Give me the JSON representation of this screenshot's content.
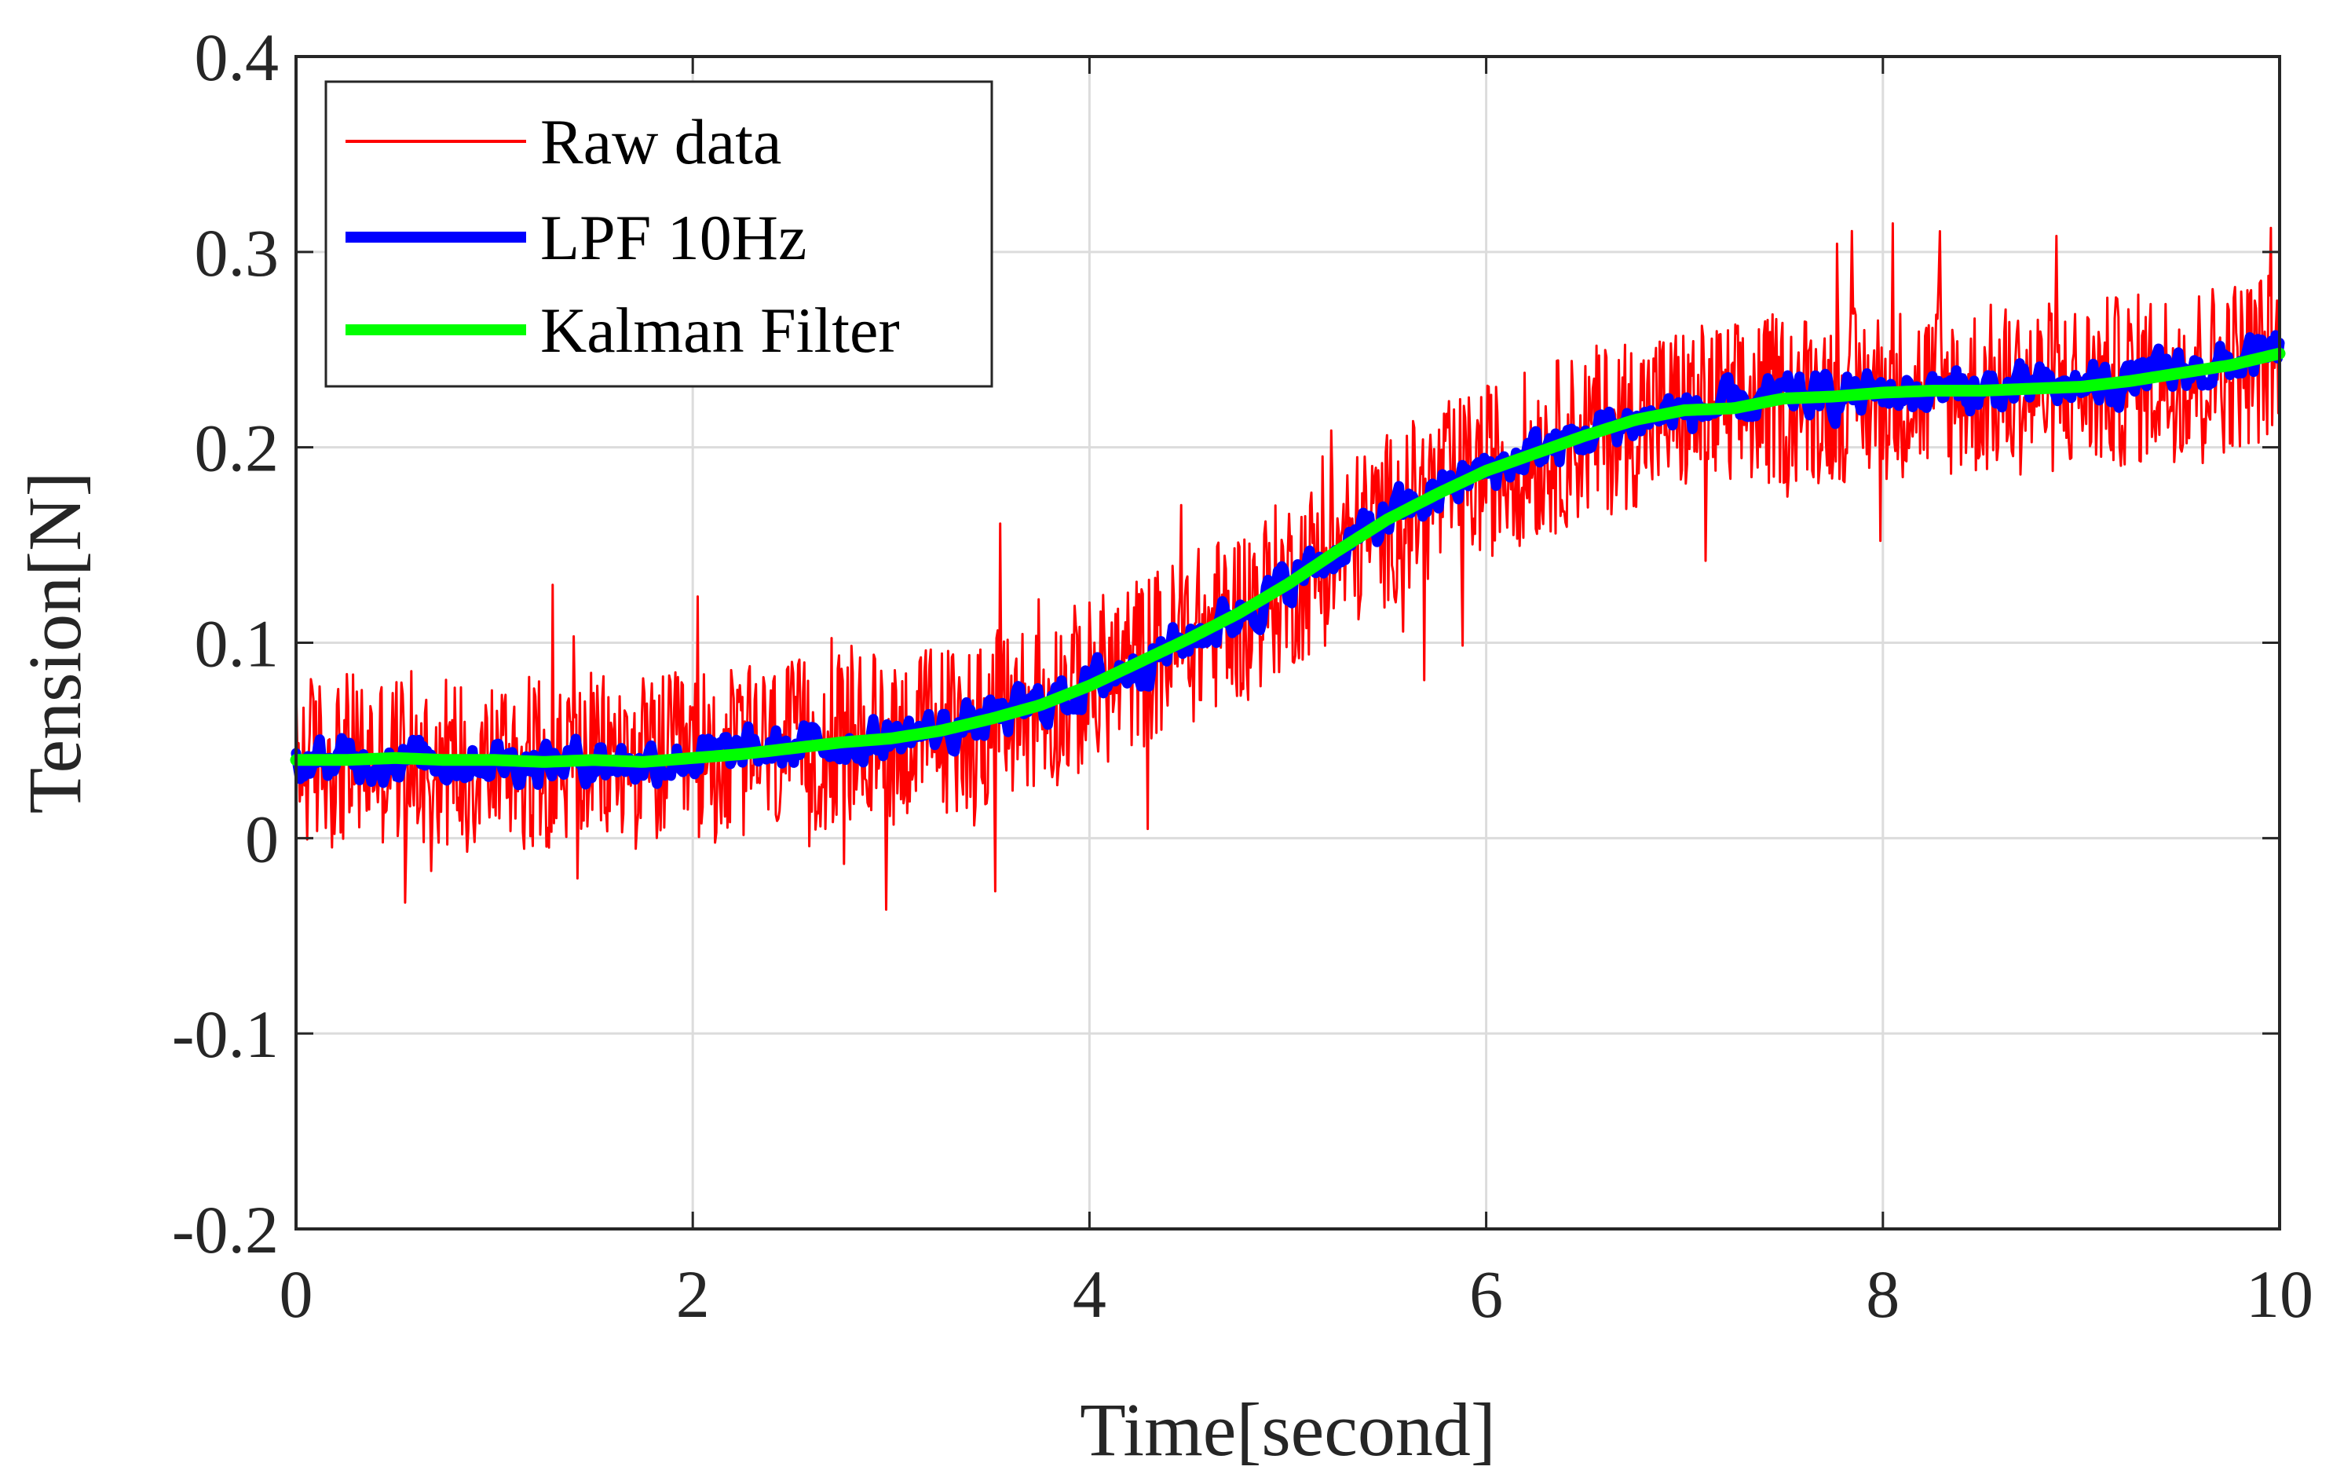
{
  "chart_data": {
    "type": "line",
    "title": "",
    "xlabel": "Time[second]",
    "ylabel": "Tension[N]",
    "xlim": [
      0,
      10
    ],
    "ylim": [
      -0.2,
      0.4
    ],
    "xticks": [
      0,
      2,
      4,
      6,
      8,
      10
    ],
    "xtick_labels": [
      "0",
      "2",
      "4",
      "6",
      "8",
      "10"
    ],
    "yticks": [
      -0.2,
      -0.1,
      0,
      0.1,
      0.2,
      0.3,
      0.4
    ],
    "ytick_labels": [
      "-0.2",
      "-0.1",
      "0",
      "0.1",
      "0.2",
      "0.3",
      "0.4"
    ],
    "grid": true,
    "legend_position": "top-left",
    "x": [
      0,
      0.25,
      0.5,
      0.75,
      1,
      1.25,
      1.5,
      1.75,
      2,
      2.25,
      2.5,
      2.75,
      3,
      3.25,
      3.5,
      3.75,
      4,
      4.25,
      4.5,
      4.75,
      5,
      5.25,
      5.5,
      5.75,
      6,
      6.25,
      6.5,
      6.75,
      7,
      7.25,
      7.5,
      7.75,
      8,
      8.25,
      8.5,
      8.75,
      9,
      9.25,
      9.5,
      9.75,
      10
    ],
    "series": [
      {
        "name": "Raw data",
        "color": "#ff0000",
        "noise_amplitude": 0.045,
        "values": [
          0.04,
          0.04,
          0.041,
          0.04,
          0.04,
          0.039,
          0.04,
          0.039,
          0.041,
          0.043,
          0.046,
          0.049,
          0.051,
          0.055,
          0.061,
          0.068,
          0.078,
          0.09,
          0.102,
          0.115,
          0.13,
          0.147,
          0.163,
          0.176,
          0.188,
          0.197,
          0.206,
          0.214,
          0.219,
          0.22,
          0.225,
          0.226,
          0.228,
          0.229,
          0.229,
          0.23,
          0.231,
          0.234,
          0.238,
          0.242,
          0.248
        ]
      },
      {
        "name": "LPF 10Hz",
        "color": "#0000ff",
        "noise_amplitude": 0.012,
        "values": [
          0.04,
          0.04,
          0.041,
          0.04,
          0.04,
          0.039,
          0.04,
          0.039,
          0.041,
          0.043,
          0.046,
          0.049,
          0.051,
          0.055,
          0.061,
          0.068,
          0.078,
          0.09,
          0.102,
          0.115,
          0.13,
          0.147,
          0.163,
          0.176,
          0.188,
          0.197,
          0.206,
          0.214,
          0.219,
          0.22,
          0.225,
          0.226,
          0.228,
          0.229,
          0.229,
          0.23,
          0.231,
          0.234,
          0.238,
          0.242,
          0.248
        ]
      },
      {
        "name": "Kalman Filter",
        "color": "#00ff00",
        "noise_amplitude": 0.0,
        "values": [
          0.04,
          0.04,
          0.041,
          0.04,
          0.04,
          0.039,
          0.04,
          0.039,
          0.041,
          0.043,
          0.046,
          0.049,
          0.051,
          0.055,
          0.061,
          0.068,
          0.078,
          0.09,
          0.102,
          0.115,
          0.13,
          0.147,
          0.163,
          0.176,
          0.188,
          0.197,
          0.206,
          0.214,
          0.219,
          0.22,
          0.225,
          0.226,
          0.228,
          0.229,
          0.229,
          0.23,
          0.231,
          0.234,
          0.238,
          0.242,
          0.248
        ]
      }
    ]
  }
}
